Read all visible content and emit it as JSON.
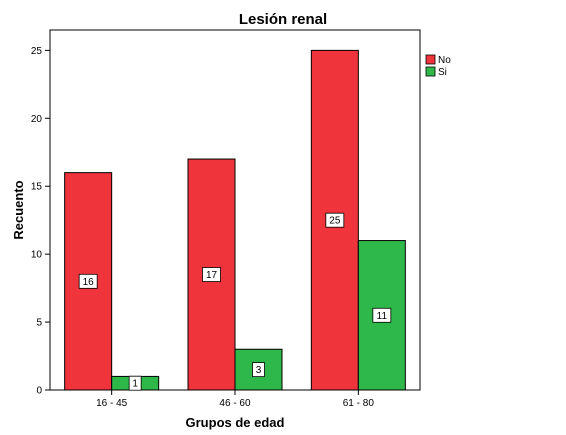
{
  "chart_data": {
    "type": "bar",
    "title": "Lesión renal",
    "xlabel": "Grupos de edad",
    "ylabel": "Recuento",
    "categories": [
      "16 - 45",
      "46 - 60",
      "61 - 80"
    ],
    "series": [
      {
        "name": "No",
        "values": [
          16,
          17,
          25
        ],
        "color": "#f0343c"
      },
      {
        "name": "Si",
        "values": [
          1,
          3,
          11
        ],
        "color": "#2eb84a"
      }
    ],
    "ylim": [
      0,
      26.5
    ],
    "yticks": [
      0,
      5,
      10,
      15,
      20,
      25
    ],
    "grid": false,
    "legend_position": "top-right",
    "data_labels": true
  }
}
